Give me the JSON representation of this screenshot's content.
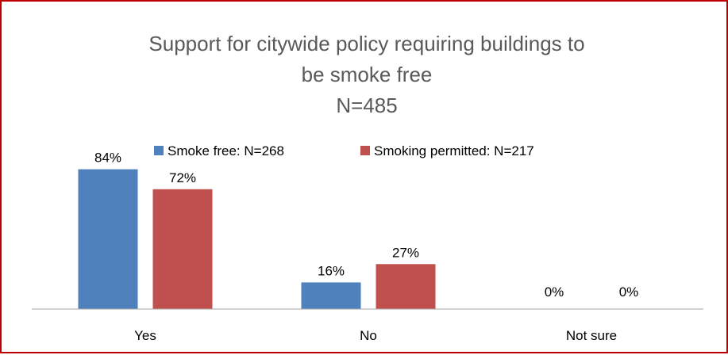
{
  "chart_data": {
    "type": "bar",
    "title": [
      "Support for citywide policy requiring buildings to",
      "be smoke free",
      "N=485"
    ],
    "categories": [
      "Yes",
      "No",
      "Not sure"
    ],
    "series": [
      {
        "name": "Smoke free: N=268",
        "values": [
          84,
          16,
          0
        ],
        "labels": [
          "84%",
          "16%",
          "0%"
        ],
        "color": "#4f81bd"
      },
      {
        "name": "Smoking permitted: N=217",
        "values": [
          72,
          27,
          0
        ],
        "labels": [
          "72%",
          "27%",
          "0%"
        ],
        "color": "#c0504d"
      }
    ],
    "ylim": [
      0,
      100
    ],
    "grid": false,
    "legend_position": "top"
  },
  "colors": {
    "border": "#c00000",
    "title": "#595959",
    "axis": "#a6a6a6"
  }
}
